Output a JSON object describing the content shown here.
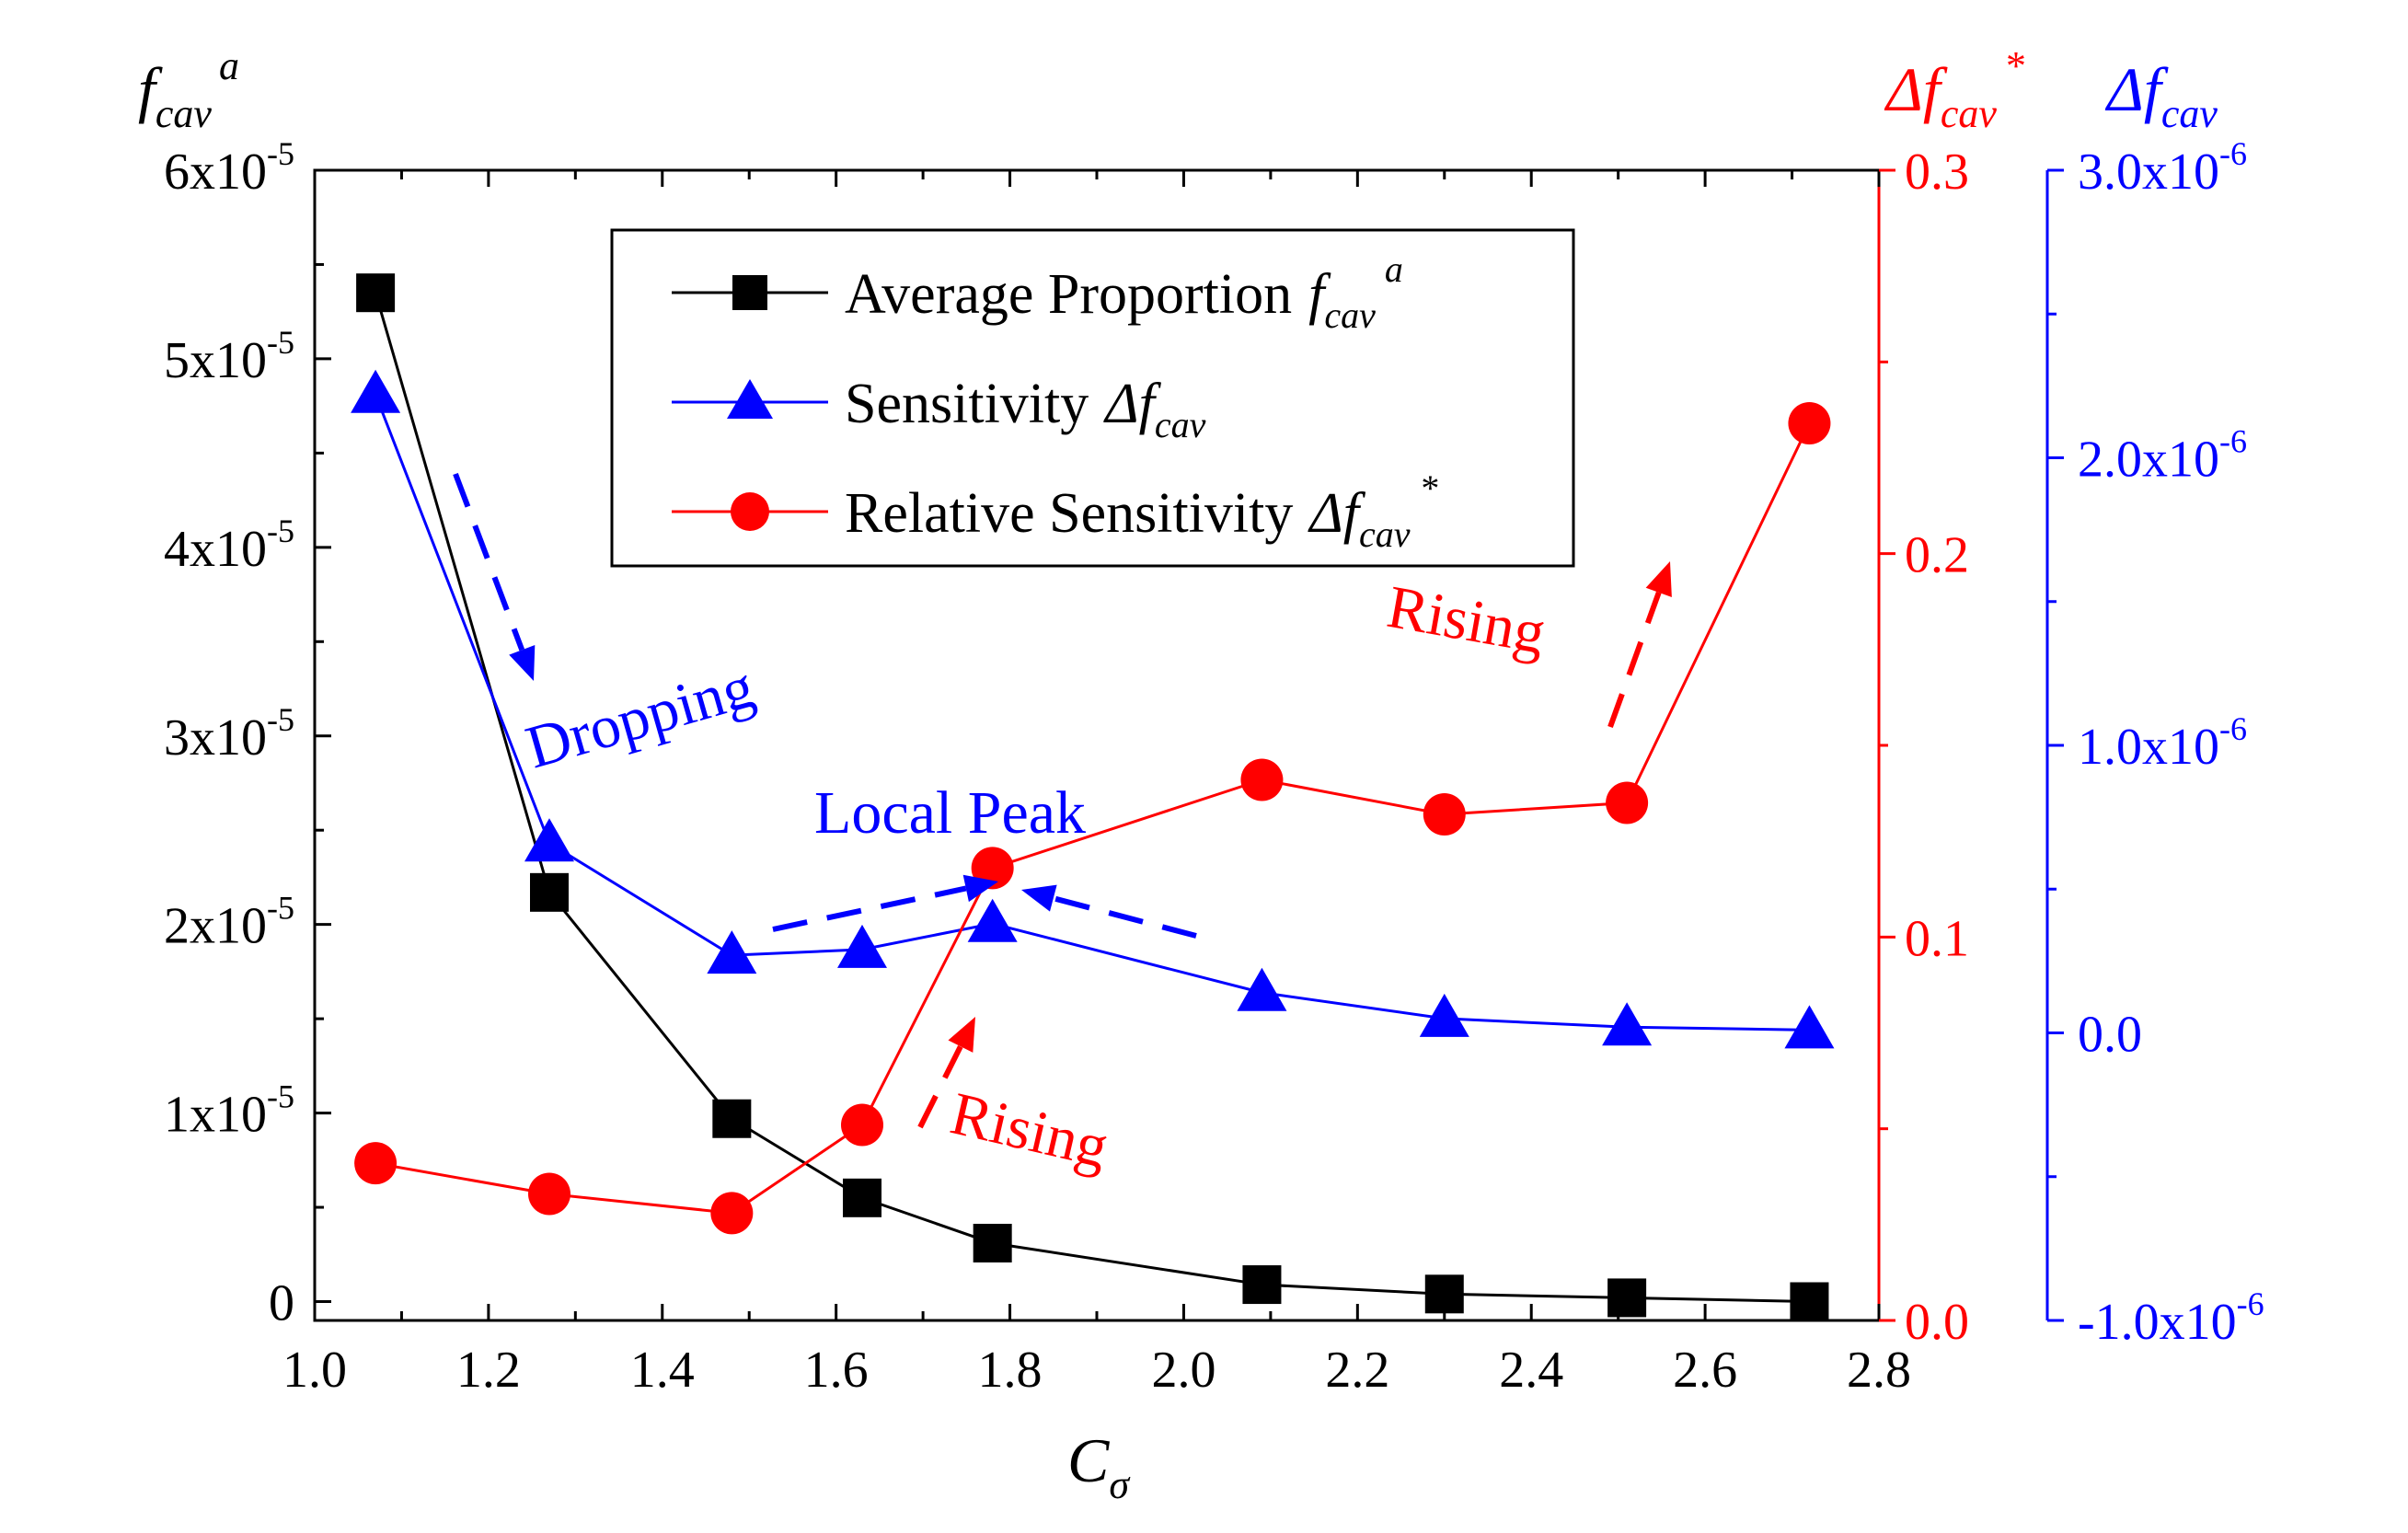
{
  "chart_data": {
    "type": "line",
    "x_axis": {
      "label": "C",
      "label_sub": "σ",
      "lim": [
        1.0,
        2.8
      ],
      "ticks": [
        "1.0",
        "1.2",
        "1.4",
        "1.6",
        "1.8",
        "2.0",
        "2.2",
        "2.4",
        "2.6",
        "2.8"
      ]
    },
    "left_axis": {
      "label": "f",
      "label_sub": "cav",
      "label_sup": "a",
      "lim": [
        -1e-06,
        6e-05
      ],
      "ticks": [
        {
          "base": "6x10",
          "exp": "-5"
        },
        {
          "base": "5x10",
          "exp": "-5"
        },
        {
          "base": "4x10",
          "exp": "-5"
        },
        {
          "base": "3x10",
          "exp": "-5"
        },
        {
          "base": "2x10",
          "exp": "-5"
        },
        {
          "base": "1x10",
          "exp": "-5"
        },
        {
          "base": "0",
          "exp": ""
        }
      ],
      "color": "#000000"
    },
    "right_axis_1": {
      "label": "Δf",
      "label_sub": "cav",
      "label_sup": "*",
      "lim": [
        0.0,
        0.3
      ],
      "ticks": [
        "0.3",
        "0.2",
        "0.1",
        "0.0"
      ],
      "color": "#ff0000"
    },
    "right_axis_2": {
      "label": "Δf",
      "label_sub": "cav",
      "lim": [
        -1e-06,
        3e-06
      ],
      "ticks": [
        {
          "base": "3.0x10",
          "exp": "-6"
        },
        {
          "base": "2.0x10",
          "exp": "-6"
        },
        {
          "base": "1.0x10",
          "exp": "-6"
        },
        {
          "base": "0.0",
          "exp": ""
        },
        {
          "base": "-1.0x10",
          "exp": "-6"
        }
      ],
      "color": "#0000ff"
    },
    "series": [
      {
        "name": "Average Proportion",
        "legend_sym": "f",
        "legend_sub": "cav",
        "legend_sup": "a",
        "marker": "square",
        "color": "#000000",
        "axis": "left",
        "x": [
          1.07,
          1.27,
          1.48,
          1.63,
          1.78,
          2.09,
          2.3,
          2.51,
          2.72
        ],
        "y": [
          5.35e-05,
          2.17e-05,
          9.7e-06,
          5.5e-06,
          3.1e-06,
          9e-07,
          4e-07,
          2e-07,
          0
        ]
      },
      {
        "name": "Sensitivity",
        "legend_sym": "Δf",
        "legend_sub": "cav",
        "legend_sup": "",
        "marker": "triangle",
        "color": "#0000ff",
        "axis": "right2",
        "x": [
          1.07,
          1.27,
          1.48,
          1.63,
          1.78,
          2.09,
          2.3,
          2.51,
          2.72
        ],
        "y": [
          2.22e-06,
          6.6e-07,
          2.7e-07,
          2.9e-07,
          3.8e-07,
          1.4e-07,
          5e-08,
          2e-08,
          1e-08
        ]
      },
      {
        "name": "Relative Sensitivity",
        "legend_sym": "Δf",
        "legend_sub": "cav",
        "legend_sup": "*",
        "marker": "circle",
        "color": "#ff0000",
        "axis": "right1",
        "x": [
          1.07,
          1.27,
          1.48,
          1.63,
          1.78,
          2.09,
          2.3,
          2.51,
          2.72
        ],
        "y": [
          0.041,
          0.033,
          0.028,
          0.051,
          0.118,
          0.141,
          0.132,
          0.135,
          0.234
        ]
      }
    ],
    "annotations": [
      {
        "text": "Dropping",
        "color": "#0000ff"
      },
      {
        "text": "Local Peak",
        "color": "#0000ff"
      },
      {
        "text": "Rising",
        "color": "#ff0000"
      },
      {
        "text": "Rising",
        "color": "#ff0000"
      }
    ]
  }
}
